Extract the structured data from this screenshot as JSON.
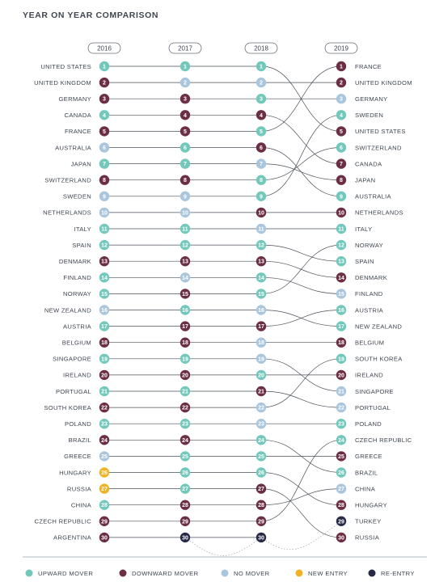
{
  "chart_data": {
    "type": "bump",
    "title": "YEAR ON YEAR COMPARISON",
    "years": [
      "2016",
      "2017",
      "2018",
      "2019"
    ],
    "countries": [
      {
        "name": "UNITED STATES",
        "ranks": [
          1,
          1,
          1,
          5
        ],
        "status": [
          "up",
          "up",
          "up",
          "down"
        ]
      },
      {
        "name": "UNITED KINGDOM",
        "ranks": [
          2,
          2,
          2,
          2
        ],
        "status": [
          "down",
          "none",
          "none",
          "down"
        ]
      },
      {
        "name": "GERMANY",
        "ranks": [
          3,
          3,
          3,
          3
        ],
        "status": [
          "down",
          "down",
          "up",
          "none"
        ]
      },
      {
        "name": "CANADA",
        "ranks": [
          4,
          4,
          4,
          7
        ],
        "status": [
          "up",
          "down",
          "down",
          "down"
        ]
      },
      {
        "name": "FRANCE",
        "ranks": [
          5,
          5,
          5,
          1
        ],
        "status": [
          "down",
          "down",
          "up",
          "up"
        ]
      },
      {
        "name": "AUSTRALIA",
        "ranks": [
          6,
          6,
          6,
          9
        ],
        "status": [
          "none",
          "up",
          "down",
          "up"
        ]
      },
      {
        "name": "JAPAN",
        "ranks": [
          7,
          7,
          7,
          8
        ],
        "status": [
          "up",
          "up",
          "none",
          "down"
        ]
      },
      {
        "name": "SWITZERLAND",
        "ranks": [
          8,
          8,
          8,
          6
        ],
        "status": [
          "down",
          "down",
          "up",
          "up"
        ]
      },
      {
        "name": "SWEDEN",
        "ranks": [
          9,
          9,
          9,
          4
        ],
        "status": [
          "none",
          "none",
          "up",
          "up"
        ]
      },
      {
        "name": "NETHERLANDS",
        "ranks": [
          10,
          10,
          10,
          10
        ],
        "status": [
          "none",
          "none",
          "down",
          "down"
        ]
      },
      {
        "name": "ITALY",
        "ranks": [
          11,
          11,
          11,
          11
        ],
        "status": [
          "up",
          "up",
          "none",
          "up"
        ]
      },
      {
        "name": "SPAIN",
        "ranks": [
          12,
          12,
          12,
          13
        ],
        "status": [
          "up",
          "up",
          "up",
          "up"
        ]
      },
      {
        "name": "DENMARK",
        "ranks": [
          13,
          13,
          13,
          14
        ],
        "status": [
          "down",
          "down",
          "down",
          "down"
        ]
      },
      {
        "name": "FINLAND",
        "ranks": [
          14,
          14,
          14,
          15
        ],
        "status": [
          "up",
          "none",
          "up",
          "none"
        ]
      },
      {
        "name": "NORWAY",
        "ranks": [
          15,
          15,
          15,
          12
        ],
        "status": [
          "up",
          "down",
          "up",
          "up"
        ]
      },
      {
        "name": "NEW ZEALAND",
        "ranks": [
          16,
          16,
          16,
          17
        ],
        "status": [
          "none",
          "up",
          "none",
          "up"
        ]
      },
      {
        "name": "AUSTRIA",
        "ranks": [
          17,
          17,
          17,
          16
        ],
        "status": [
          "up",
          "down",
          "down",
          "up"
        ]
      },
      {
        "name": "BELGIUM",
        "ranks": [
          18,
          18,
          18,
          18
        ],
        "status": [
          "down",
          "down",
          "none",
          "down"
        ]
      },
      {
        "name": "SINGAPORE",
        "ranks": [
          19,
          19,
          19,
          21
        ],
        "status": [
          "up",
          "up",
          "none",
          "none"
        ]
      },
      {
        "name": "IRELAND",
        "ranks": [
          20,
          20,
          20,
          20
        ],
        "status": [
          "down",
          "down",
          "up",
          "down"
        ]
      },
      {
        "name": "PORTUGAL",
        "ranks": [
          21,
          21,
          21,
          22
        ],
        "status": [
          "up",
          "up",
          "down",
          "none"
        ]
      },
      {
        "name": "SOUTH KOREA",
        "ranks": [
          22,
          22,
          22,
          19
        ],
        "status": [
          "down",
          "down",
          "none",
          "up"
        ]
      },
      {
        "name": "POLAND",
        "ranks": [
          23,
          23,
          23,
          23
        ],
        "status": [
          "up",
          "up",
          "none",
          "up"
        ]
      },
      {
        "name": "BRAZIL",
        "ranks": [
          24,
          24,
          24,
          26
        ],
        "status": [
          "down",
          "down",
          "up",
          "up"
        ]
      },
      {
        "name": "GREECE",
        "ranks": [
          25,
          25,
          25,
          25
        ],
        "status": [
          "none",
          "up",
          "up",
          "down"
        ]
      },
      {
        "name": "HUNGARY",
        "ranks": [
          26,
          26,
          26,
          28
        ],
        "status": [
          "new",
          "up",
          "up",
          "down"
        ]
      },
      {
        "name": "RUSSIA",
        "ranks": [
          27,
          27,
          27,
          30
        ],
        "status": [
          "new",
          "up",
          "down",
          "down"
        ]
      },
      {
        "name": "CHINA",
        "ranks": [
          28,
          28,
          28,
          27
        ],
        "status": [
          "up",
          "down",
          "down",
          "none"
        ]
      },
      {
        "name": "CZECH REPUBLIC",
        "ranks": [
          29,
          29,
          29,
          24
        ],
        "status": [
          "down",
          "down",
          "down",
          "up"
        ]
      },
      {
        "name": "ARGENTINA",
        "ranks": [
          30,
          30,
          30
        ],
        "status": [
          "down",
          "reentry",
          "reentry"
        ]
      },
      {
        "name": "TURKEY",
        "ranks": [
          null,
          null,
          null,
          29
        ],
        "status": [
          "",
          "",
          "",
          "reentry"
        ]
      }
    ],
    "right_labels": [
      "FRANCE",
      "UNITED KINGDOM",
      "GERMANY",
      "SWEDEN",
      "UNITED STATES",
      "SWITZERLAND",
      "CANADA",
      "JAPAN",
      "AUSTRALIA",
      "NETHERLANDS",
      "ITALY",
      "NORWAY",
      "SPAIN",
      "DENMARK",
      "FINLAND",
      "AUSTRIA",
      "NEW ZEALAND",
      "BELGIUM",
      "SOUTH KOREA",
      "IRELAND",
      "SINGAPORE",
      "PORTUGAL",
      "POLAND",
      "CZECH REPUBLIC",
      "GREECE",
      "BRAZIL",
      "CHINA",
      "HUNGARY",
      "TURKEY",
      "RUSSIA"
    ],
    "grid": [
      [
        "up",
        "up",
        "up",
        "down"
      ],
      [
        "down",
        "none",
        "none",
        "down"
      ],
      [
        "down",
        "down",
        "up",
        "none"
      ],
      [
        "up",
        "down",
        "down",
        "up"
      ],
      [
        "down",
        "down",
        "up",
        "down"
      ],
      [
        "none",
        "up",
        "down",
        "up"
      ],
      [
        "up",
        "up",
        "none",
        "down"
      ],
      [
        "down",
        "down",
        "up",
        "down"
      ],
      [
        "none",
        "none",
        "up",
        "up"
      ],
      [
        "none",
        "none",
        "down",
        "down"
      ],
      [
        "up",
        "up",
        "none",
        "up"
      ],
      [
        "up",
        "up",
        "up",
        "up"
      ],
      [
        "down",
        "down",
        "down",
        "up"
      ],
      [
        "up",
        "none",
        "up",
        "down"
      ],
      [
        "up",
        "down",
        "up",
        "none"
      ],
      [
        "none",
        "up",
        "none",
        "up"
      ],
      [
        "up",
        "down",
        "down",
        "up"
      ],
      [
        "down",
        "down",
        "none",
        "down"
      ],
      [
        "up",
        "up",
        "none",
        "up"
      ],
      [
        "down",
        "down",
        "up",
        "down"
      ],
      [
        "up",
        "up",
        "down",
        "none"
      ],
      [
        "down",
        "down",
        "none",
        "none"
      ],
      [
        "up",
        "up",
        "none",
        "up"
      ],
      [
        "down",
        "down",
        "up",
        "up"
      ],
      [
        "none",
        "up",
        "up",
        "down"
      ],
      [
        "new",
        "up",
        "up",
        "up"
      ],
      [
        "new",
        "up",
        "down",
        "none"
      ],
      [
        "up",
        "down",
        "down",
        "down"
      ],
      [
        "down",
        "down",
        "down",
        "reentry"
      ],
      [
        "down",
        "reentry",
        "reentry",
        "down"
      ]
    ],
    "legend": [
      {
        "key": "up",
        "label": "UPWARD MOVER",
        "color": "#72c8bb"
      },
      {
        "key": "down",
        "label": "DOWNWARD MOVER",
        "color": "#6b2e45"
      },
      {
        "key": "none",
        "label": "NO MOVER",
        "color": "#a9c6dc"
      },
      {
        "key": "new",
        "label": "NEW ENTRY",
        "color": "#f0b323"
      },
      {
        "key": "reentry",
        "label": "RE-ENTRY",
        "color": "#262a47"
      }
    ]
  }
}
